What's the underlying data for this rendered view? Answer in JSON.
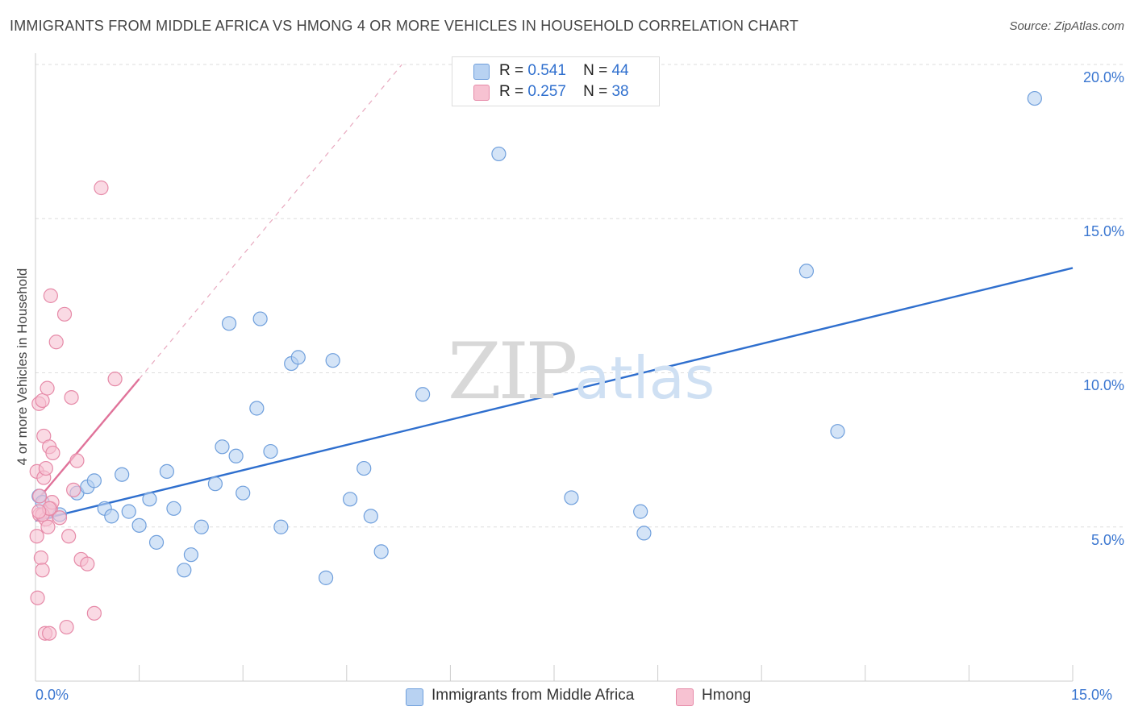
{
  "title": "IMMIGRANTS FROM MIDDLE AFRICA VS HMONG 4 OR MORE VEHICLES IN HOUSEHOLD CORRELATION CHART",
  "source": "Source: ZipAtlas.com",
  "watermark": {
    "zip": "ZIP",
    "atlas": "atlas"
  },
  "colors": {
    "blue_fill": "#b8d2f2",
    "blue_stroke": "#6f9fdc",
    "blue_line": "#2f6fce",
    "pink_fill": "#f7c2d2",
    "pink_stroke": "#e68aa8",
    "pink_line": "#e0739a",
    "tick_text": "#3a76d0",
    "grid": "#dddddd"
  },
  "legend_top": [
    {
      "r_label": "R =",
      "r_value": "0.541",
      "n_label": "N =",
      "n_value": "44"
    },
    {
      "r_label": "R =",
      "r_value": "0.257",
      "n_label": "N =",
      "n_value": "38"
    }
  ],
  "chart_data": {
    "type": "scatter",
    "title": "IMMIGRANTS FROM MIDDLE AFRICA VS HMONG 4 OR MORE VEHICLES IN HOUSEHOLD CORRELATION CHART",
    "xlabel": "",
    "ylabel": "4 or more Vehicles in Household",
    "xlim": [
      0,
      15
    ],
    "ylim": [
      0,
      20
    ],
    "x_tick_labels": [
      "0.0%",
      "15.0%"
    ],
    "y_ticks": [
      5,
      10,
      15,
      20
    ],
    "y_tick_labels": [
      "5.0%",
      "10.0%",
      "15.0%",
      "20.0%"
    ],
    "grid": true,
    "legend_position": "bottom",
    "series": [
      {
        "name": "Immigrants from Middle Africa",
        "color": "#b8d2f2",
        "points": [
          [
            0.05,
            6.0
          ],
          [
            0.1,
            5.8
          ],
          [
            0.2,
            5.5
          ],
          [
            0.35,
            5.4
          ],
          [
            0.6,
            6.1
          ],
          [
            0.75,
            6.3
          ],
          [
            0.85,
            6.5
          ],
          [
            1.0,
            5.6
          ],
          [
            1.1,
            5.35
          ],
          [
            1.25,
            6.7
          ],
          [
            1.35,
            5.5
          ],
          [
            1.5,
            5.05
          ],
          [
            1.65,
            5.9
          ],
          [
            1.75,
            4.5
          ],
          [
            1.9,
            6.8
          ],
          [
            2.0,
            5.6
          ],
          [
            2.15,
            3.6
          ],
          [
            2.25,
            4.1
          ],
          [
            2.4,
            5.0
          ],
          [
            2.6,
            6.4
          ],
          [
            2.7,
            7.6
          ],
          [
            2.8,
            11.6
          ],
          [
            2.9,
            7.3
          ],
          [
            3.0,
            6.1
          ],
          [
            3.2,
            8.85
          ],
          [
            3.25,
            11.75
          ],
          [
            3.4,
            7.45
          ],
          [
            3.55,
            5.0
          ],
          [
            3.7,
            10.3
          ],
          [
            3.8,
            10.5
          ],
          [
            4.2,
            3.35
          ],
          [
            4.3,
            10.4
          ],
          [
            4.55,
            5.9
          ],
          [
            4.75,
            6.9
          ],
          [
            4.85,
            5.35
          ],
          [
            5.0,
            4.2
          ],
          [
            5.6,
            9.3
          ],
          [
            6.7,
            17.1
          ],
          [
            7.75,
            5.95
          ],
          [
            8.75,
            5.5
          ],
          [
            8.8,
            4.8
          ],
          [
            11.15,
            13.3
          ],
          [
            11.6,
            8.1
          ],
          [
            14.45,
            18.9
          ]
        ]
      },
      {
        "name": "Hmong",
        "color": "#f7c2d2",
        "points": [
          [
            0.02,
            6.8
          ],
          [
            0.02,
            4.7
          ],
          [
            0.03,
            2.7
          ],
          [
            0.05,
            9.0
          ],
          [
            0.06,
            6.0
          ],
          [
            0.06,
            5.4
          ],
          [
            0.08,
            4.0
          ],
          [
            0.1,
            9.1
          ],
          [
            0.1,
            3.6
          ],
          [
            0.12,
            7.95
          ],
          [
            0.12,
            6.6
          ],
          [
            0.14,
            1.55
          ],
          [
            0.15,
            5.25
          ],
          [
            0.15,
            6.9
          ],
          [
            0.17,
            9.5
          ],
          [
            0.18,
            5.0
          ],
          [
            0.2,
            7.6
          ],
          [
            0.2,
            1.55
          ],
          [
            0.22,
            5.6
          ],
          [
            0.24,
            5.8
          ],
          [
            0.25,
            7.4
          ],
          [
            0.22,
            12.5
          ],
          [
            0.3,
            11.0
          ],
          [
            0.35,
            5.3
          ],
          [
            0.42,
            11.9
          ],
          [
            0.45,
            1.75
          ],
          [
            0.48,
            4.7
          ],
          [
            0.52,
            9.2
          ],
          [
            0.55,
            6.2
          ],
          [
            0.6,
            7.15
          ],
          [
            0.66,
            3.95
          ],
          [
            0.75,
            3.8
          ],
          [
            0.85,
            2.2
          ],
          [
            0.95,
            16.0
          ],
          [
            1.15,
            9.8
          ],
          [
            0.1,
            5.4
          ],
          [
            0.2,
            5.6
          ],
          [
            0.05,
            5.5
          ]
        ]
      }
    ],
    "trend_lines": [
      {
        "series": "Immigrants from Middle Africa",
        "x": [
          0.0,
          15.0
        ],
        "y": [
          5.2,
          13.4
        ]
      },
      {
        "series": "Hmong",
        "x": [
          0.0,
          1.5
        ],
        "y": [
          5.8,
          9.8
        ],
        "extends_dashed_to": [
          5.3,
          20.0
        ]
      }
    ]
  }
}
